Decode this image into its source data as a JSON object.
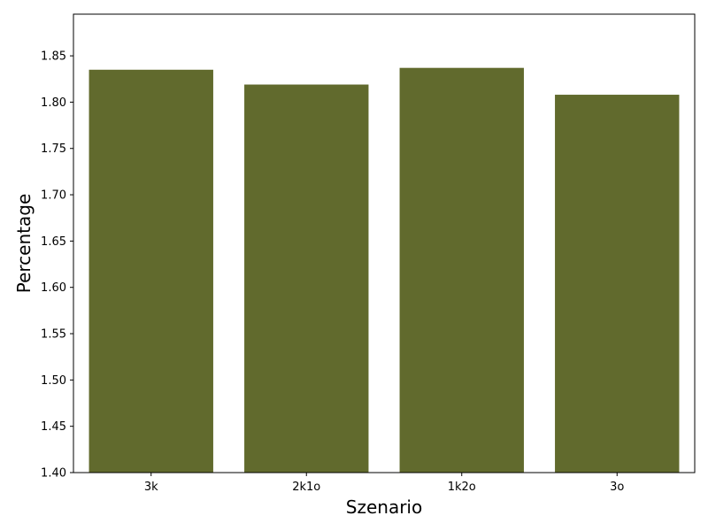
{
  "chart_data": {
    "type": "bar",
    "title": "",
    "xlabel": "Szenario",
    "ylabel": "Percentage",
    "categories": [
      "3k",
      "2k1o",
      "1k2o",
      "3o"
    ],
    "values": [
      1.835,
      1.819,
      1.837,
      1.808
    ],
    "ylim": [
      1.4,
      1.895
    ],
    "yticks": [
      "1.40",
      "1.45",
      "1.50",
      "1.55",
      "1.60",
      "1.65",
      "1.70",
      "1.75",
      "1.80",
      "1.85"
    ],
    "bar_color": "#616a2d",
    "grid": false,
    "legend": "none"
  }
}
